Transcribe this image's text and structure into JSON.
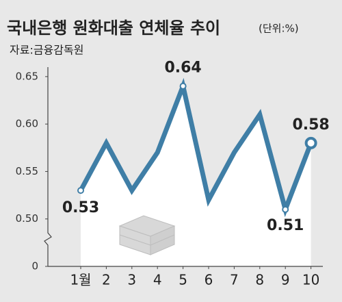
{
  "chart_data": {
    "type": "line",
    "title": "국내은행 원화대출 연체율 추이",
    "unit": "(단위:%)",
    "source": "자료:금융감독원",
    "categories": [
      "1월",
      "2",
      "3",
      "4",
      "5",
      "6",
      "7",
      "8",
      "9",
      "10"
    ],
    "values": [
      0.53,
      0.58,
      0.53,
      0.57,
      0.64,
      0.52,
      0.57,
      0.61,
      0.51,
      0.58
    ],
    "value_labels": [
      "0.53",
      null,
      null,
      null,
      "0.64",
      null,
      null,
      null,
      "0.51",
      "0.58"
    ],
    "color": "#3f7ea6",
    "ylim": [
      0.45,
      0.66
    ],
    "yticks": [
      {
        "value": 0,
        "label": "0"
      },
      {
        "value": 0.5,
        "label": "0.50"
      },
      {
        "value": 0.55,
        "label": "0.55"
      },
      {
        "value": 0.6,
        "label": "0.60"
      },
      {
        "value": 0.65,
        "label": "0.65"
      }
    ],
    "axis_break": true,
    "grid": false
  }
}
